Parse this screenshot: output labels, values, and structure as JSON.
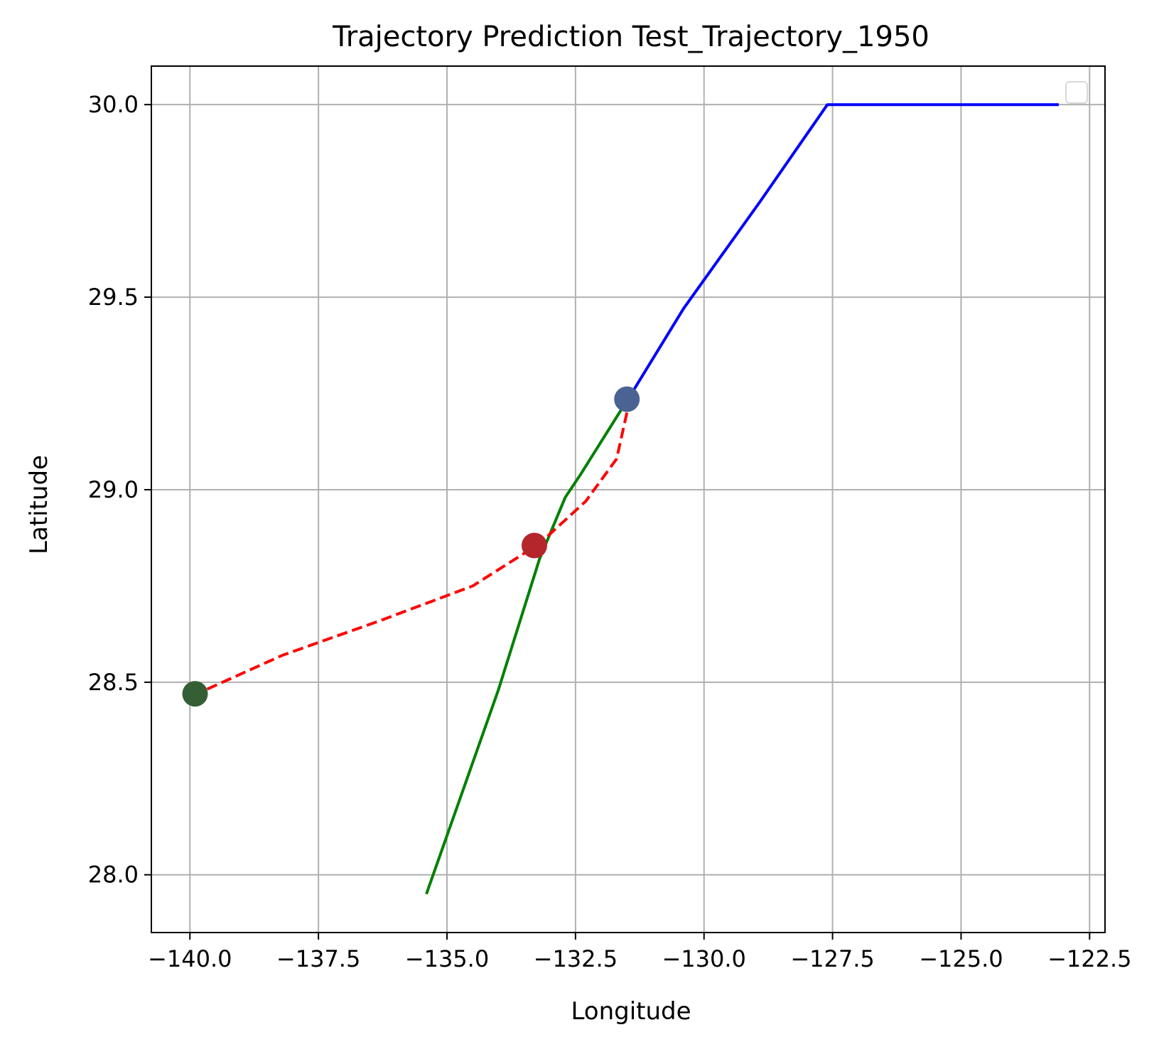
{
  "chart_data": {
    "type": "line",
    "title": "Trajectory Prediction Test_Trajectory_1950",
    "xlabel": "Longitude",
    "ylabel": "Latitude",
    "xlim": [
      -140.75,
      -122.2
    ],
    "ylim": [
      27.85,
      30.1
    ],
    "xticks": [
      -140.0,
      -137.5,
      -135.0,
      -132.5,
      -130.0,
      -127.5,
      -125.0,
      -122.5
    ],
    "xtick_labels": [
      "−140.0",
      "−137.5",
      "−135.0",
      "−132.5",
      "−130.0",
      "−127.5",
      "−125.0",
      "−122.5"
    ],
    "yticks": [
      28.0,
      28.5,
      29.0,
      29.5,
      30.0
    ],
    "ytick_labels": [
      "28.0",
      "28.5",
      "29.0",
      "29.5",
      "30.0"
    ],
    "grid": true,
    "legend": "upper right (empty)",
    "series": [
      {
        "style": "solid",
        "color": "#0000ff",
        "x": [
          -123.1,
          -127.6,
          -128.9,
          -130.4,
          -131.5
        ],
        "y": [
          30.0,
          30.0,
          29.75,
          29.47,
          29.23
        ]
      },
      {
        "style": "solid",
        "color": "#008000",
        "x": [
          -131.6,
          -132.4,
          -132.7,
          -133.2,
          -134.0,
          -135.4
        ],
        "y": [
          29.21,
          29.04,
          28.98,
          28.82,
          28.48,
          27.95
        ]
      },
      {
        "style": "dashed",
        "color": "#ff0000",
        "x": [
          -131.5,
          -131.7,
          -132.3,
          -133.2,
          -134.5,
          -136.3,
          -138.2,
          -139.7
        ],
        "y": [
          29.2,
          29.08,
          28.97,
          28.86,
          28.75,
          28.66,
          28.57,
          28.48
        ]
      }
    ],
    "markers": [
      {
        "x": -131.5,
        "y": 29.235,
        "color": "#4a6394"
      },
      {
        "x": -133.3,
        "y": 28.855,
        "color": "#b5262c"
      },
      {
        "x": -139.9,
        "y": 28.47,
        "color": "#355e35"
      }
    ]
  }
}
